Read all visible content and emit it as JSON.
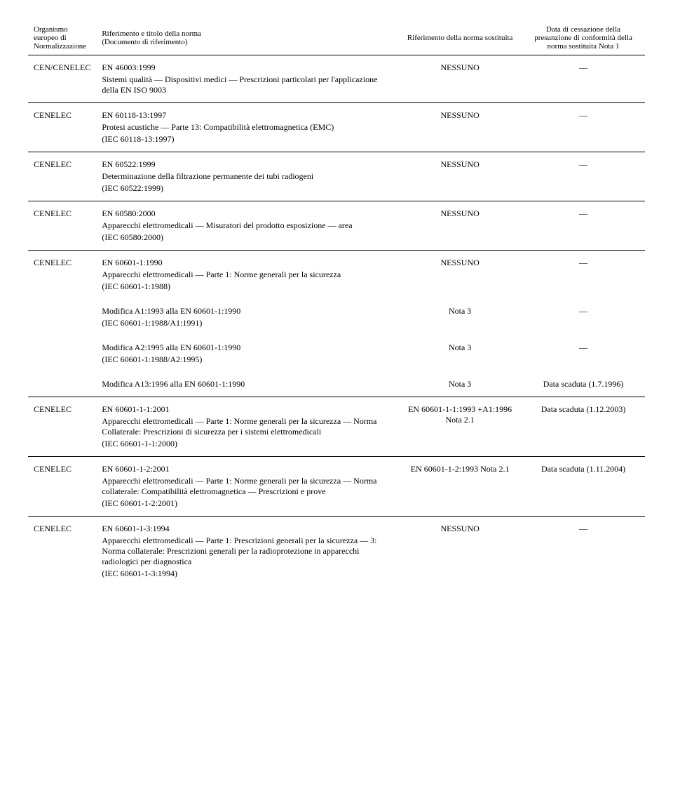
{
  "header": {
    "col1": "Organismo europeo di Normalizzazione",
    "col2a": "Riferimento e titolo della norma",
    "col2b": "(Documento di riferimento)",
    "col3": "Riferimento della norma sostituita",
    "col4": "Data di cessazione della presunzione di conformità della norma sostituita Nota 1"
  },
  "r1": {
    "org": "CEN/CENELEC",
    "code": "EN 46003:1999",
    "desc": "Sistemi qualità — Dispositivi medici — Prescrizioni particolari per l'applicazione della EN ISO 9003",
    "ref": "NESSUNO",
    "date": "—"
  },
  "r2": {
    "org": "CENELEC",
    "code": "EN 60118-13:1997",
    "desc": "Protesi acustiche — Parte 13: Compatibilità elettromagnetica (EMC)",
    "iec": "(IEC 60118-13:1997)",
    "ref": "NESSUNO",
    "date": "—"
  },
  "r3": {
    "org": "CENELEC",
    "code": "EN 60522:1999",
    "desc": "Determinazione della filtrazione permanente dei tubi radiogeni",
    "iec": "(IEC 60522:1999)",
    "ref": "NESSUNO",
    "date": "—"
  },
  "r4": {
    "org": "CENELEC",
    "code": "EN 60580:2000",
    "desc": "Apparecchi elettromedicali — Misuratori del prodotto esposizione — area",
    "iec": "(IEC 60580:2000)",
    "ref": "NESSUNO",
    "date": "—"
  },
  "r5": {
    "org": "CENELEC",
    "code": "EN 60601-1:1990",
    "desc": "Apparecchi elettromedicali — Parte 1: Norme generali per la sicurezza",
    "iec": "(IEC 60601-1:1988)",
    "ref": "NESSUNO",
    "date": "—"
  },
  "r5a": {
    "code": "Modifica A1:1993 alla EN 60601-1:1990",
    "iec": "(IEC 60601-1:1988/A1:1991)",
    "ref": "Nota 3",
    "date": "—"
  },
  "r5b": {
    "code": "Modifica A2:1995 alla EN 60601-1:1990",
    "iec": "(IEC 60601-1:1988/A2:1995)",
    "ref": "Nota 3",
    "date": "—"
  },
  "r5c": {
    "code": "Modifica A13:1996 alla EN 60601-1:1990",
    "ref": "Nota 3",
    "date": "Data scaduta (1.7.1996)"
  },
  "r6": {
    "org": "CENELEC",
    "code": "EN 60601-1-1:2001",
    "desc": "Apparecchi elettromedicali — Parte 1: Norme generali per la sicurezza — Norma Collaterale: Prescrizioni di sicurezza per i sistemi elettromedicali",
    "iec": "(IEC 60601-1-1:2000)",
    "ref": "EN 60601-1-1:1993 +A1:1996 Nota 2.1",
    "date": "Data scaduta (1.12.2003)"
  },
  "r7": {
    "org": "CENELEC",
    "code": "EN 60601-1-2:2001",
    "desc": "Apparecchi elettromedicali — Parte 1: Norme generali per la sicurezza — Norma collaterale: Compatibilità elettromagnetica — Prescrizioni e prove",
    "iec": "(IEC 60601-1-2:2001)",
    "ref": "EN 60601-1-2:1993 Nota 2.1",
    "date": "Data scaduta (1.11.2004)"
  },
  "r8": {
    "org": "CENELEC",
    "code": "EN 60601-1-3:1994",
    "desc": "Apparecchi elettromedicali — Parte 1: Prescrizioni generali per la sicurezza — 3: Norma collaterale: Prescrizioni generali per la radioprotezione in apparecchi radiologici per diagnostica",
    "iec": "(IEC 60601-1-3:1994)",
    "ref": "NESSUNO",
    "date": "—"
  }
}
